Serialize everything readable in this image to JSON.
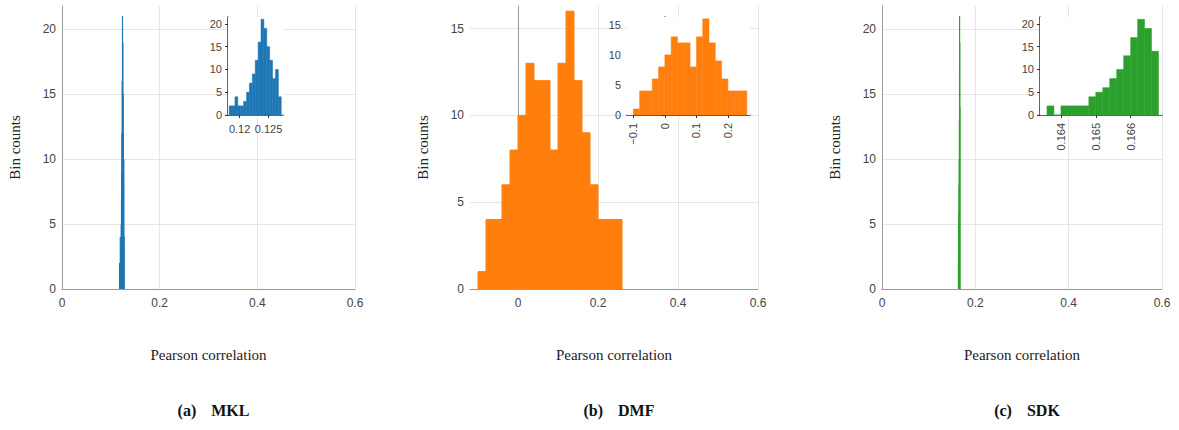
{
  "chart_data": [
    {
      "type": "histogram",
      "title": "(a) MKL",
      "x_label": "Pearson correlation",
      "y_label": "Bin counts",
      "bins": [
        0.1182,
        0.1187,
        0.1192,
        0.1197,
        0.1202,
        0.1207,
        0.1212,
        0.1217,
        0.1222,
        0.1227,
        0.1232,
        0.1237,
        0.1242,
        0.1247,
        0.1252,
        0.1257,
        0.1262,
        0.1267,
        0.1272
      ],
      "counts": [
        2,
        2,
        4,
        2,
        2,
        3,
        5,
        7,
        9,
        12,
        16,
        21,
        19,
        15,
        12,
        8,
        10,
        4
      ],
      "color": "#1f77b4",
      "xlim": [
        0,
        0.6
      ],
      "ylim": [
        0,
        21.8
      ],
      "xticks": [
        0,
        0.2,
        0.4,
        0.6
      ],
      "yticks": [
        0,
        5,
        10,
        15,
        20
      ],
      "grid": true
    },
    {
      "type": "histogram",
      "bins": [
        0.1182,
        0.1187,
        0.1192,
        0.1197,
        0.1202,
        0.1207,
        0.1212,
        0.1217,
        0.1222,
        0.1227,
        0.1232,
        0.1237,
        0.1242,
        0.1247,
        0.1252,
        0.1257,
        0.1262,
        0.1267,
        0.1272
      ],
      "counts": [
        2,
        2,
        4,
        2,
        2,
        3,
        5,
        7,
        9,
        12,
        16,
        21,
        19,
        15,
        12,
        8,
        10,
        4
      ],
      "color": "#1f77b4",
      "xlim": [
        0.118,
        0.1275
      ],
      "ylim": [
        0,
        21.5
      ],
      "xticks": [
        0.12,
        0.125
      ],
      "yticks": [
        0,
        5,
        10,
        15,
        20
      ],
      "grid": false
    },
    {
      "type": "histogram",
      "title": "(b) DMF",
      "x_label": "Pearson correlation",
      "y_label": "Bin counts",
      "bins": [
        -0.1,
        -0.08,
        -0.06,
        -0.04,
        -0.02,
        0,
        0.02,
        0.04,
        0.06,
        0.08,
        0.1,
        0.12,
        0.14,
        0.16,
        0.18,
        0.2,
        0.22,
        0.24,
        0.26
      ],
      "counts": [
        1,
        4,
        4,
        6,
        8,
        10,
        13,
        12,
        12,
        8,
        13,
        16,
        12,
        9,
        6,
        4,
        4,
        4
      ],
      "color": "#ff7f0e",
      "xlim": [
        -0.12,
        0.6
      ],
      "ylim": [
        0,
        16.3
      ],
      "xticks": [
        0,
        0.2,
        0.4,
        0.6
      ],
      "yticks": [
        0,
        5,
        10,
        15
      ],
      "grid": true
    },
    {
      "type": "histogram",
      "bins": [
        -0.1,
        -0.08,
        -0.06,
        -0.04,
        -0.02,
        0,
        0.02,
        0.04,
        0.06,
        0.08,
        0.1,
        0.12,
        0.14,
        0.16,
        0.18,
        0.2,
        0.22,
        0.24,
        0.26
      ],
      "counts": [
        1,
        4,
        4,
        6,
        8,
        10,
        13,
        12,
        12,
        8,
        13,
        16,
        12,
        9,
        6,
        4,
        4,
        4
      ],
      "color": "#ff7f0e",
      "xlim": [
        -0.12,
        0.27
      ],
      "ylim": [
        0,
        16.3
      ],
      "xticks": [
        {
          "value": -0.1,
          "label": "−0.1"
        },
        0,
        0.1,
        0.2
      ],
      "yticks": [
        0,
        5,
        10,
        15
      ],
      "grid": false
    },
    {
      "type": "histogram",
      "title": "(c) SDK",
      "x_label": "Pearson correlation",
      "y_label": "Bin counts",
      "bins": [
        0.1636,
        0.1638,
        0.164,
        0.1642,
        0.1644,
        0.1646,
        0.1648,
        0.165,
        0.1652,
        0.1654,
        0.1656,
        0.1658,
        0.166,
        0.1662,
        0.1664,
        0.1666,
        0.1668
      ],
      "counts": [
        2,
        0,
        2,
        2,
        2,
        2,
        4,
        5,
        6,
        8,
        10,
        13,
        17,
        21,
        19,
        14
      ],
      "color": "#2ca02c",
      "xlim": [
        0,
        0.6
      ],
      "ylim": [
        0,
        21.8
      ],
      "xticks": [
        0,
        0.2,
        0.4,
        0.6
      ],
      "yticks": [
        0,
        5,
        10,
        15,
        20
      ],
      "grid": true
    },
    {
      "type": "histogram",
      "bins": [
        0.1636,
        0.1638,
        0.164,
        0.1642,
        0.1644,
        0.1646,
        0.1648,
        0.165,
        0.1652,
        0.1654,
        0.1656,
        0.1658,
        0.166,
        0.1662,
        0.1664,
        0.1666,
        0.1668
      ],
      "counts": [
        2,
        0,
        2,
        2,
        2,
        2,
        4,
        5,
        6,
        8,
        10,
        13,
        17,
        21,
        19,
        14
      ],
      "color": "#2ca02c",
      "xlim": [
        0.1634,
        0.1669
      ],
      "ylim": [
        0,
        21.5
      ],
      "xticks": [
        0.164,
        0.165,
        0.166
      ],
      "yticks": [
        0,
        5,
        10,
        15,
        20
      ],
      "grid": false
    }
  ]
}
